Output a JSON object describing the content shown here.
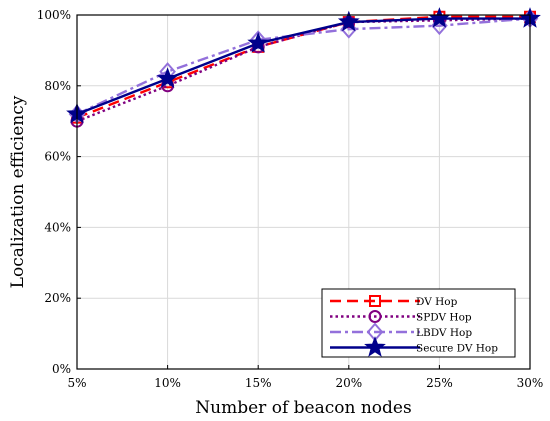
{
  "chart_data": {
    "type": "line",
    "xlabel": "Number of beacon nodes",
    "ylabel": "Localization efficiency",
    "categories": [
      "5%",
      "10%",
      "15%",
      "20%",
      "25%",
      "30%"
    ],
    "y_ticks": [
      "0%",
      "20%",
      "40%",
      "60%",
      "80%",
      "100%"
    ],
    "ylim": [
      0,
      100
    ],
    "grid": true,
    "legend_position": "bottom-right",
    "series": [
      {
        "name": "DV Hop",
        "values": [
          71,
          81,
          91,
          98,
          99.5,
          99.5
        ],
        "color": "#ff0000",
        "dash": "dashed",
        "marker": "square"
      },
      {
        "name": "SPDV Hop",
        "values": [
          70,
          80,
          91,
          98,
          98.5,
          99
        ],
        "color": "#800080",
        "dash": "dotted",
        "marker": "circle"
      },
      {
        "name": "LBDV Hop",
        "values": [
          72,
          84,
          93,
          96,
          97,
          99
        ],
        "color": "#9370db",
        "dash": "dashdot",
        "marker": "diamond"
      },
      {
        "name": "Secure DV Hop",
        "values": [
          72,
          82,
          92,
          98,
          99,
          99
        ],
        "color": "#00008b",
        "dash": "solid",
        "marker": "star"
      }
    ]
  }
}
